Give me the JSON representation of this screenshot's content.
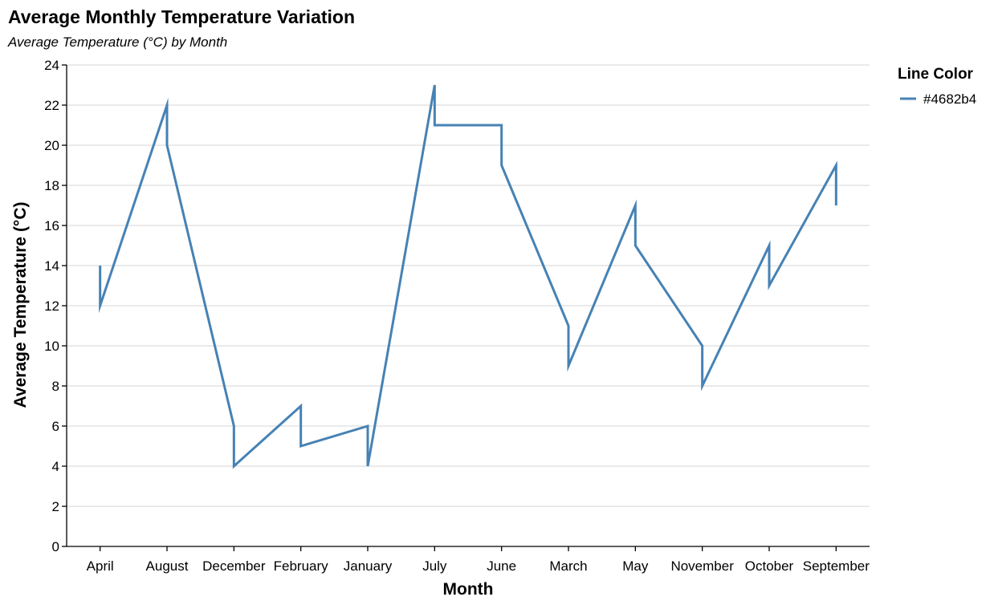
{
  "chart_data": {
    "type": "line",
    "title": "Average Monthly Temperature Variation",
    "subtitle": "Average Temperature (°C) by Month",
    "xlabel": "Month",
    "ylabel": "Average Temperature (°C)",
    "ylim": [
      0,
      24
    ],
    "yticks": [
      0,
      2,
      4,
      6,
      8,
      10,
      12,
      14,
      16,
      18,
      20,
      22,
      24
    ],
    "grid": "horizontal",
    "legend": {
      "title": "Line Color",
      "placement": "right",
      "items": [
        "#4682b4"
      ]
    },
    "line_color": "#4682b4",
    "categories": [
      "April",
      "August",
      "December",
      "February",
      "January",
      "July",
      "June",
      "March",
      "May",
      "November",
      "October",
      "September"
    ],
    "series": [
      {
        "name": "#4682b4",
        "values": [
          [
            14,
            12
          ],
          [
            22,
            20
          ],
          [
            6,
            4
          ],
          [
            7,
            5
          ],
          [
            6,
            4
          ],
          [
            23,
            21
          ],
          [
            21,
            19
          ],
          [
            11,
            9
          ],
          [
            17,
            15
          ],
          [
            10,
            8
          ],
          [
            15,
            13
          ],
          [
            19,
            17
          ]
        ]
      }
    ]
  }
}
